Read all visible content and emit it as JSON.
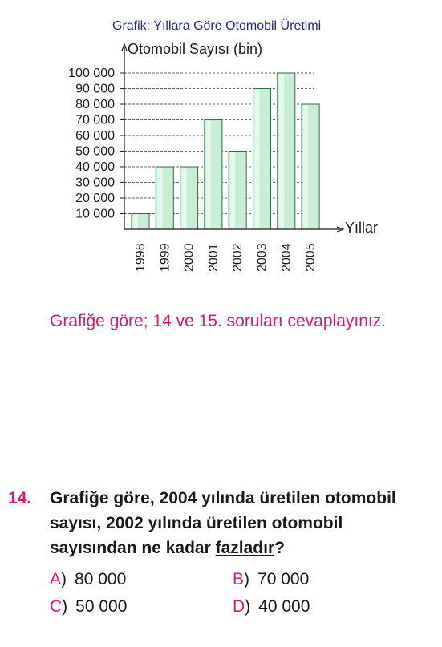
{
  "chart_data": {
    "type": "bar",
    "title": "Grafik: Yıllara Göre Otomobil Üretimi",
    "ylabel": "Otomobil Sayısı (bin)",
    "xlabel": "Yıllar",
    "categories": [
      "1998",
      "1999",
      "2000",
      "2001",
      "2002",
      "2003",
      "2004",
      "2005"
    ],
    "values": [
      10000,
      40000,
      40000,
      70000,
      50000,
      90000,
      100000,
      80000
    ],
    "yticks": [
      "10 000",
      "20 000",
      "30 000",
      "40 000",
      "50 000",
      "60 000",
      "70 000",
      "80 000",
      "90 000",
      "100 000"
    ],
    "ylim": [
      0,
      100000
    ],
    "grid": "dashed horizontal",
    "colors": {
      "title": "#1d2a8a",
      "bar_fill": "#c8efd6",
      "bar_stroke": "#2c6e45",
      "grid": "#333333"
    }
  },
  "instruction": "Grafiğe göre; 14 ve 15. soruları cevaplayınız.",
  "question": {
    "number": "14.",
    "text_before": "Grafiğe göre, 2004 yılında üretilen otomobil sayısı, 2002 yılında üretilen otomobil sayısından ne kadar ",
    "text_underlined": "fazladır",
    "text_after": "?",
    "options": [
      {
        "letter": "A",
        "value": "80 000"
      },
      {
        "letter": "B",
        "value": "70 000"
      },
      {
        "letter": "C",
        "value": "50 000"
      },
      {
        "letter": "D",
        "value": "40 000"
      }
    ]
  }
}
